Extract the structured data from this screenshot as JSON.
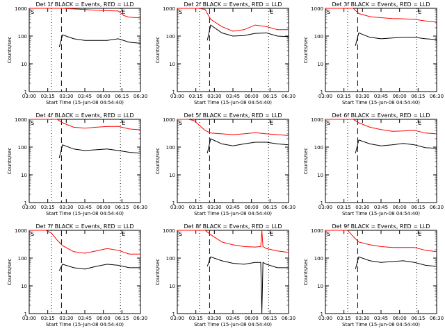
{
  "figure": {
    "start_time_label": "Start Time (15-Jun-08 04:54:40)",
    "y_axis_label": "Counts/sec",
    "x_tick_labels": [
      "03:00",
      "03:15",
      "03:30",
      "03:45",
      "06:00",
      "06:15",
      "06:30"
    ],
    "y_tick_labels": [
      "1",
      "10",
      "100",
      "1000"
    ],
    "marker_left": "S",
    "marker_right": "E",
    "colors": {
      "events": "#000000",
      "lld": "#ff0000"
    }
  },
  "chart_data": [
    {
      "type": "line",
      "title": "Det 1f BLACK = Events, RED = LLD",
      "xlabel": "Start Time (15-Jun-08 04:54:40)",
      "ylabel": "Counts/sec",
      "y_scale": "log",
      "ylim": [
        1,
        1000
      ],
      "series": [
        {
          "name": "Events",
          "color": "#000000",
          "x": [
            0.27,
            0.3,
            0.4,
            0.5,
            0.6,
            0.7,
            0.8,
            0.9,
            1.0
          ],
          "y": [
            40,
            110,
            80,
            70,
            70,
            70,
            80,
            60,
            55
          ]
        },
        {
          "name": "LLD",
          "color": "#ff0000",
          "x": [
            0.0,
            0.1,
            0.18,
            0.25,
            0.3,
            0.4,
            0.5,
            0.6,
            0.7,
            0.8,
            0.85,
            0.9,
            1.0
          ],
          "y": [
            1000,
            1000,
            1000,
            1000,
            1000,
            950,
            900,
            850,
            820,
            800,
            550,
            480,
            450
          ]
        }
      ]
    },
    {
      "type": "line",
      "title": "Det 2f BLACK = Events, RED = LLD",
      "xlabel": "Start Time (15-Jun-08 04:54:40)",
      "ylabel": "Counts/sec",
      "y_scale": "log",
      "ylim": [
        1,
        1000
      ],
      "series": [
        {
          "name": "Events",
          "color": "#000000",
          "x": [
            0.27,
            0.3,
            0.4,
            0.5,
            0.6,
            0.7,
            0.8,
            0.9,
            1.0
          ],
          "y": [
            70,
            250,
            130,
            100,
            105,
            125,
            130,
            100,
            95
          ]
        },
        {
          "name": "LLD",
          "color": "#ff0000",
          "x": [
            0.0,
            0.1,
            0.2,
            0.25,
            0.3,
            0.4,
            0.5,
            0.6,
            0.7,
            0.8,
            0.9,
            1.0
          ],
          "y": [
            1000,
            1000,
            1000,
            900,
            400,
            220,
            150,
            170,
            250,
            220,
            170,
            170
          ]
        }
      ]
    },
    {
      "type": "line",
      "title": "Det 3f BLACK = Events, RED = LLD",
      "xlabel": "Start Time (15-Jun-08 04:54:40)",
      "ylabel": "Counts/sec",
      "y_scale": "log",
      "ylim": [
        1,
        1000
      ],
      "series": [
        {
          "name": "Events",
          "color": "#000000",
          "x": [
            0.27,
            0.3,
            0.4,
            0.5,
            0.6,
            0.7,
            0.8,
            0.9,
            1.0
          ],
          "y": [
            45,
            130,
            90,
            80,
            85,
            90,
            90,
            80,
            75
          ]
        },
        {
          "name": "LLD",
          "color": "#ff0000",
          "x": [
            0.0,
            0.1,
            0.2,
            0.25,
            0.3,
            0.4,
            0.5,
            0.6,
            0.7,
            0.8,
            0.9,
            1.0
          ],
          "y": [
            1000,
            1000,
            1000,
            1000,
            650,
            500,
            460,
            430,
            420,
            400,
            350,
            320
          ]
        }
      ]
    },
    {
      "type": "line",
      "title": "Det 4f BLACK = Events, RED = LLD",
      "xlabel": "Start Time (15-Jun-08 04:54:40)",
      "ylabel": "Counts/sec",
      "y_scale": "log",
      "ylim": [
        1,
        1000
      ],
      "series": [
        {
          "name": "Events",
          "color": "#000000",
          "x": [
            0.27,
            0.3,
            0.4,
            0.5,
            0.6,
            0.7,
            0.8,
            0.9,
            1.0
          ],
          "y": [
            40,
            120,
            85,
            75,
            80,
            85,
            75,
            65,
            60
          ]
        },
        {
          "name": "LLD",
          "color": "#ff0000",
          "x": [
            0.0,
            0.1,
            0.18,
            0.25,
            0.3,
            0.4,
            0.5,
            0.6,
            0.7,
            0.8,
            0.9,
            1.0
          ],
          "y": [
            1000,
            1000,
            1000,
            1000,
            750,
            520,
            480,
            520,
            550,
            560,
            450,
            420
          ]
        }
      ]
    },
    {
      "type": "line",
      "title": "Det 5f BLACK = Events, RED = LLD",
      "xlabel": "Start Time (15-Jun-08 04:54:40)",
      "ylabel": "Counts/sec",
      "y_scale": "log",
      "ylim": [
        1,
        1000
      ],
      "series": [
        {
          "name": "Events",
          "color": "#000000",
          "x": [
            0.27,
            0.3,
            0.4,
            0.5,
            0.6,
            0.7,
            0.8,
            0.9,
            1.0
          ],
          "y": [
            60,
            200,
            130,
            110,
            130,
            150,
            150,
            130,
            120
          ]
        },
        {
          "name": "LLD",
          "color": "#ff0000",
          "x": [
            0.0,
            0.1,
            0.15,
            0.2,
            0.25,
            0.3,
            0.4,
            0.5,
            0.6,
            0.7,
            0.8,
            0.9,
            1.0
          ],
          "y": [
            1000,
            1000,
            900,
            600,
            400,
            320,
            300,
            280,
            300,
            330,
            300,
            280,
            260
          ]
        }
      ]
    },
    {
      "type": "line",
      "title": "Det 6f BLACK = Events, RED = LLD",
      "xlabel": "Start Time (15-Jun-08 04:54:40)",
      "ylabel": "Counts/sec",
      "y_scale": "log",
      "ylim": [
        1,
        1000
      ],
      "series": [
        {
          "name": "Events",
          "color": "#000000",
          "x": [
            0.27,
            0.3,
            0.4,
            0.5,
            0.6,
            0.7,
            0.8,
            0.9,
            1.0
          ],
          "y": [
            60,
            180,
            130,
            110,
            120,
            135,
            120,
            95,
            90
          ]
        },
        {
          "name": "LLD",
          "color": "#ff0000",
          "x": [
            0.0,
            0.1,
            0.2,
            0.25,
            0.3,
            0.4,
            0.5,
            0.6,
            0.7,
            0.8,
            0.9,
            1.0
          ],
          "y": [
            1000,
            1000,
            1000,
            1000,
            750,
            520,
            430,
            370,
            380,
            400,
            320,
            300
          ]
        }
      ]
    },
    {
      "type": "line",
      "title": "Det 7f BLACK = Events, RED = LLD",
      "xlabel": "Start Time (15-Jun-08 04:54:40)",
      "ylabel": "Counts/sec",
      "y_scale": "log",
      "ylim": [
        1,
        1000
      ],
      "series": [
        {
          "name": "Events",
          "color": "#000000",
          "x": [
            0.27,
            0.3,
            0.4,
            0.5,
            0.6,
            0.7,
            0.8,
            0.9,
            1.0
          ],
          "y": [
            35,
            60,
            45,
            40,
            50,
            60,
            55,
            45,
            45
          ]
        },
        {
          "name": "LLD",
          "color": "#ff0000",
          "x": [
            0.0,
            0.1,
            0.15,
            0.2,
            0.25,
            0.3,
            0.4,
            0.5,
            0.6,
            0.7,
            0.8,
            0.9,
            1.0
          ],
          "y": [
            1000,
            1000,
            1000,
            800,
            450,
            280,
            170,
            150,
            180,
            220,
            190,
            140,
            140
          ]
        }
      ]
    },
    {
      "type": "line",
      "title": "Det 8f BLACK = Events, RED = LLD",
      "xlabel": "Start Time (15-Jun-08 04:54:40)",
      "ylabel": "Counts/sec",
      "y_scale": "log",
      "ylim": [
        1,
        1000
      ],
      "series": [
        {
          "name": "Events",
          "color": "#000000",
          "x": [
            0.27,
            0.3,
            0.4,
            0.5,
            0.6,
            0.7,
            0.75,
            0.76,
            0.77,
            0.8,
            0.9,
            1.0
          ],
          "y": [
            50,
            110,
            80,
            65,
            60,
            70,
            70,
            1,
            70,
            60,
            45,
            45
          ]
        },
        {
          "name": "LLD",
          "color": "#ff0000",
          "x": [
            0.0,
            0.1,
            0.2,
            0.25,
            0.3,
            0.4,
            0.5,
            0.6,
            0.7,
            0.75,
            0.76,
            0.77,
            0.8,
            0.9,
            1.0
          ],
          "y": [
            1000,
            1000,
            1000,
            1000,
            700,
            380,
            300,
            260,
            250,
            260,
            1000,
            260,
            220,
            180,
            160
          ]
        }
      ]
    },
    {
      "type": "line",
      "title": "Det 9f BLACK = Events, RED = LLD",
      "xlabel": "Start Time (15-Jun-08 04:54:40)",
      "ylabel": "Counts/sec",
      "y_scale": "log",
      "ylim": [
        1,
        1000
      ],
      "series": [
        {
          "name": "Events",
          "color": "#000000",
          "x": [
            0.27,
            0.3,
            0.4,
            0.5,
            0.6,
            0.7,
            0.8,
            0.9,
            1.0
          ],
          "y": [
            40,
            110,
            80,
            70,
            75,
            80,
            70,
            55,
            50
          ]
        },
        {
          "name": "LLD",
          "color": "#ff0000",
          "x": [
            0.0,
            0.1,
            0.2,
            0.25,
            0.3,
            0.4,
            0.5,
            0.6,
            0.7,
            0.8,
            0.9,
            1.0
          ],
          "y": [
            1000,
            1000,
            1000,
            600,
            380,
            300,
            260,
            240,
            240,
            240,
            190,
            170
          ]
        }
      ]
    }
  ]
}
